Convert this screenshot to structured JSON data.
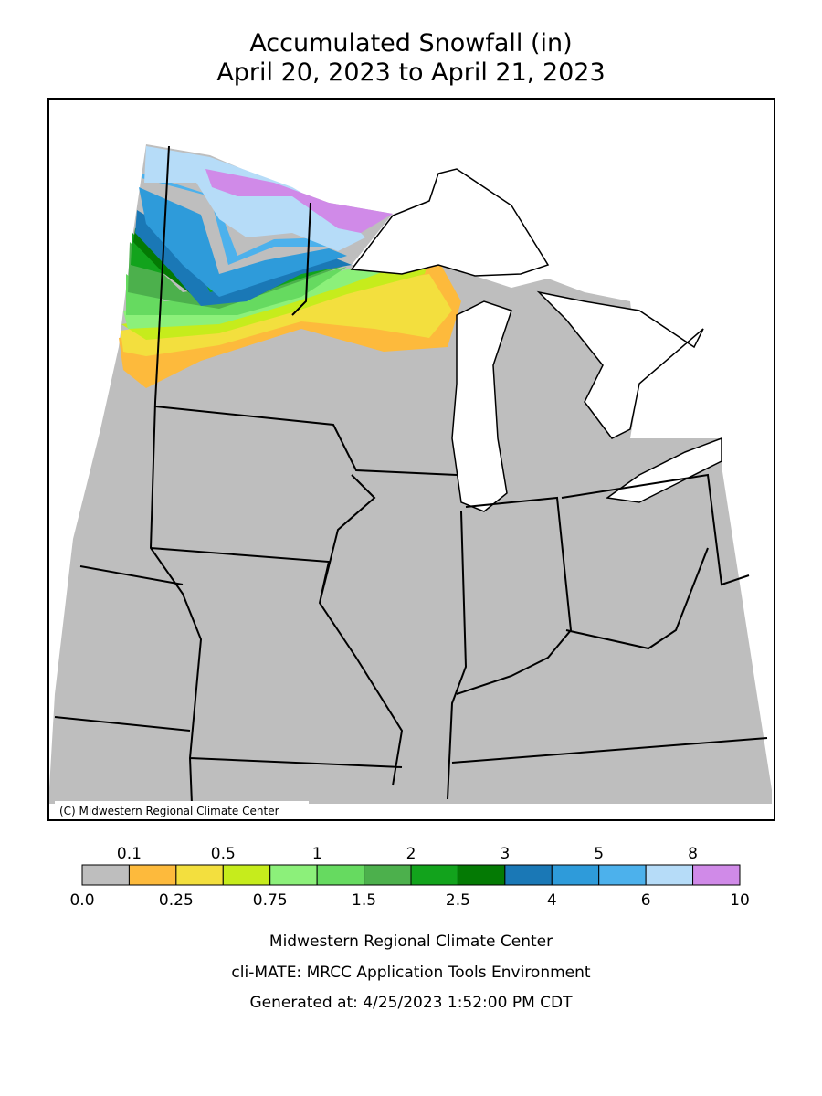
{
  "header": {
    "title_line1": "Accumulated Snowfall (in)",
    "title_line2": "April 20, 2023 to April 21, 2023"
  },
  "map": {
    "copyright": "(C) Midwestern Regional Climate Center"
  },
  "legend": {
    "boundaries": [
      "0.0",
      "0.1",
      "0.25",
      "0.5",
      "0.75",
      "1",
      "1.5",
      "2",
      "2.5",
      "3",
      "4",
      "5",
      "6",
      "8",
      "10"
    ],
    "colors": [
      "#bebebe",
      "#fdba3c",
      "#f3df3e",
      "#c6ec1c",
      "#8cf07a",
      "#66da60",
      "#4cb04c",
      "#12a31c",
      "#047a04",
      "#1a78b6",
      "#2e9bda",
      "#4cb1ec",
      "#b6dcf8",
      "#d08ae8"
    ]
  },
  "footer": {
    "line1": "Midwestern Regional Climate Center",
    "line2": "cli-MATE: MRCC Application Tools Environment",
    "line3": "Generated at: 4/25/2023 1:52:00 PM CDT"
  }
}
